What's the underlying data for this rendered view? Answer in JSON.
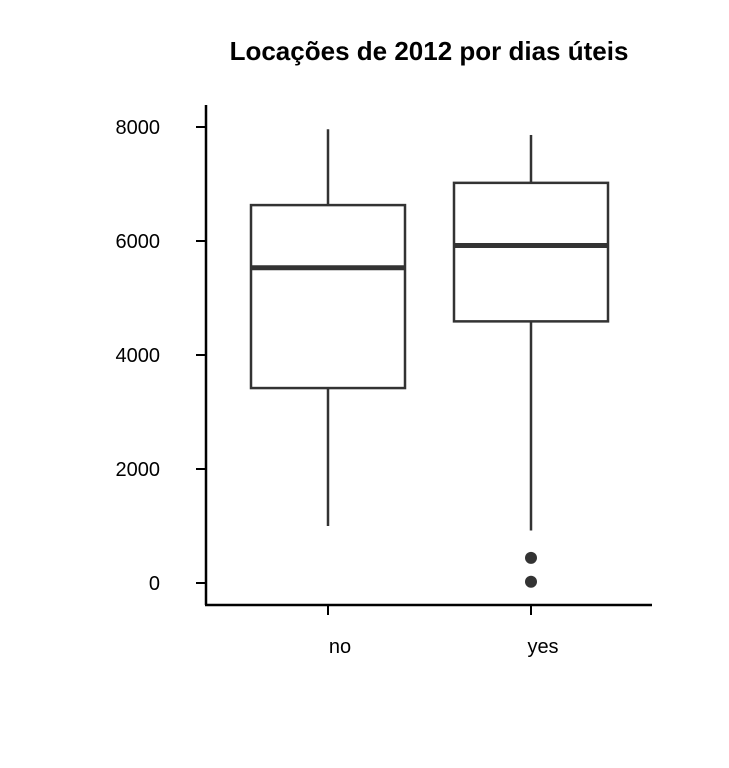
{
  "chart_data": {
    "type": "box",
    "title": "Locações de 2012 por dias úteis",
    "xlabel": "",
    "ylabel": "",
    "categories": [
      "no",
      "yes"
    ],
    "y_ticks": [
      0,
      2000,
      4000,
      6000,
      8000
    ],
    "ylim": [
      -400,
      8400
    ],
    "grid": false,
    "boxes": [
      {
        "category": "no",
        "whisker_low": 1000,
        "q1": 3420,
        "median": 5530,
        "q3": 6630,
        "whisker_high": 7960,
        "outliers": []
      },
      {
        "category": "yes",
        "whisker_low": 920,
        "q1": 4590,
        "median": 5920,
        "q3": 7020,
        "whisker_high": 7860,
        "outliers": [
          440,
          22
        ]
      }
    ],
    "colors": {
      "box_stroke": "#333333",
      "axis": "#000000",
      "outlier": "#333333"
    }
  }
}
